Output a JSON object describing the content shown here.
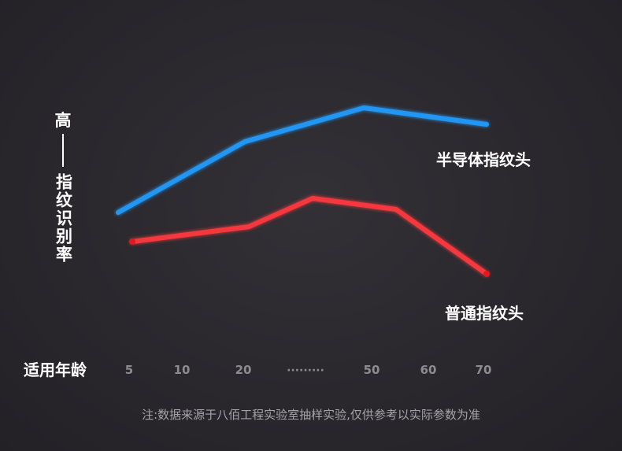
{
  "chart_data": {
    "type": "line",
    "title": "",
    "ylabel_top": "高",
    "ylabel_rest": "指纹识别率",
    "xlabel": "适用年龄",
    "x_ticks": [
      "5",
      "10",
      "20",
      "·········",
      "50",
      "60",
      "70"
    ],
    "series": [
      {
        "name": "半导体指纹头",
        "color": "#2196f3",
        "points": [
          [
            5,
            270
          ],
          [
            20,
            180
          ],
          [
            50,
            137
          ],
          [
            70,
            158
          ]
        ],
        "point_labels": [
          "5",
          "20",
          "50",
          "70"
        ]
      },
      {
        "name": "普通指纹头",
        "color": "#f5393d",
        "points": [
          [
            5,
            307
          ],
          [
            20,
            288
          ],
          [
            37,
            252
          ],
          [
            55,
            266
          ],
          [
            70,
            348
          ]
        ],
        "point_labels": [
          "5",
          "20",
          "",
          "",
          "70"
        ]
      }
    ],
    "grid": true
  },
  "footnote": "注:数据来源于八佰工程实验室抽样实验,仅供参考以实际参数为准"
}
